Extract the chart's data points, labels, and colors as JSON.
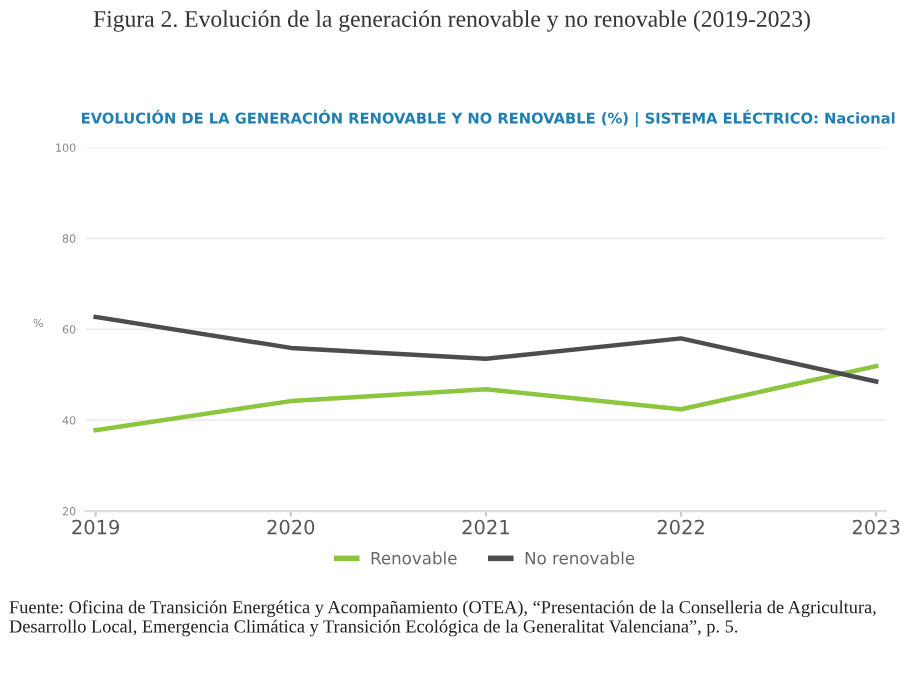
{
  "chart_data": {
    "type": "line",
    "title": "Figura 2. Evolución de la generación renovable y no renovable (2019-2023)",
    "subtitle": "EVOLUCIÓN DE LA GENERACIÓN RENOVABLE Y NO RENOVABLE (%) | SISTEMA ELÉCTRICO: Nacional",
    "ylabel": "%",
    "categories": [
      "2019",
      "2020",
      "2021",
      "2022",
      "2023"
    ],
    "series": [
      {
        "name": "Renovable",
        "color": "#8cc63f",
        "values": [
          37.8,
          44.2,
          46.8,
          42.4,
          51.9
        ]
      },
      {
        "name": "No renovable",
        "color": "#4d4d4d",
        "values": [
          62.7,
          55.9,
          53.5,
          58.0,
          48.5
        ]
      }
    ],
    "ylim": [
      20,
      100
    ],
    "yticks": [
      20,
      40,
      60,
      80,
      100
    ],
    "grid": "y",
    "legend": "bottom",
    "marker": "none",
    "line_style": "solid",
    "annotations": [
      "Fuente: Oficina de Transición Energética y Acompañamiento (OTEA), “Presentación de la Conselleria de Agricultura, Desarrollo Local, Emergencia Climática y Transición Ecológica de la Generalitat Valenciana”, p. 5."
    ]
  }
}
